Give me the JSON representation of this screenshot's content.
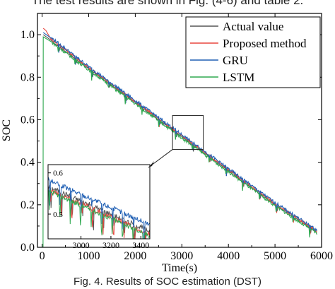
{
  "top_text": "The test results are shown in Fig. (4-6) and table 2.",
  "caption": "Fig. 4. Results of SOC estimation (DST)",
  "chart_data": {
    "type": "line",
    "title": "",
    "xlabel": "Time(s)",
    "ylabel": "SOC",
    "xlim": [
      -100,
      6000
    ],
    "ylim": [
      0.0,
      1.1
    ],
    "xticks": [
      0,
      1000,
      2000,
      3000,
      4000,
      5000,
      6000
    ],
    "xtick_labels": [
      "0",
      "1000",
      "2000",
      "3000",
      "4000",
      "5000",
      "6000"
    ],
    "yticks": [
      0.0,
      0.2,
      0.4,
      0.6,
      0.8,
      1.0
    ],
    "ytick_labels": [
      "0.0",
      "0.2",
      "0.4",
      "0.6",
      "0.8",
      "1.0"
    ],
    "grid": false,
    "legend_position": "top-right",
    "series": [
      {
        "name": "Actual value",
        "color": "#555555",
        "x": [
          0,
          200,
          1000,
          2000,
          3000,
          4000,
          5000,
          5900
        ],
        "y": [
          1.0,
          0.97,
          0.84,
          0.68,
          0.52,
          0.36,
          0.2,
          0.07
        ]
      },
      {
        "name": "Proposed method",
        "color": "#e8473f",
        "x": [
          0,
          50,
          200,
          1000,
          2000,
          3000,
          4000,
          5000,
          5900
        ],
        "y": [
          1.03,
          1.02,
          0.98,
          0.845,
          0.685,
          0.525,
          0.365,
          0.205,
          0.075
        ]
      },
      {
        "name": "GRU",
        "color": "#1f5fb4",
        "x": [
          0,
          200,
          1000,
          2000,
          3000,
          4000,
          5000,
          5900
        ],
        "y": [
          1.01,
          0.985,
          0.85,
          0.69,
          0.53,
          0.37,
          0.21,
          0.08
        ]
      },
      {
        "name": "LSTM",
        "color": "#2ea84f",
        "x": [
          0,
          200,
          1000,
          2000,
          3000,
          4000,
          5000,
          5900
        ],
        "y": [
          0.99,
          0.965,
          0.835,
          0.675,
          0.515,
          0.355,
          0.195,
          0.065
        ]
      }
    ],
    "inset": {
      "xlim": [
        2780,
        3460
      ],
      "ylim": [
        0.44,
        0.62
      ],
      "xticks": [
        3000,
        3200,
        3400
      ],
      "xtick_labels": [
        "3000",
        "3200",
        "3400"
      ],
      "yticks": [
        0.5,
        0.6
      ],
      "ytick_labels": [
        "0.5",
        "0.6"
      ],
      "zoom_box": {
        "x": [
          2800,
          3460
        ],
        "y": [
          0.46,
          0.62
        ]
      }
    }
  }
}
